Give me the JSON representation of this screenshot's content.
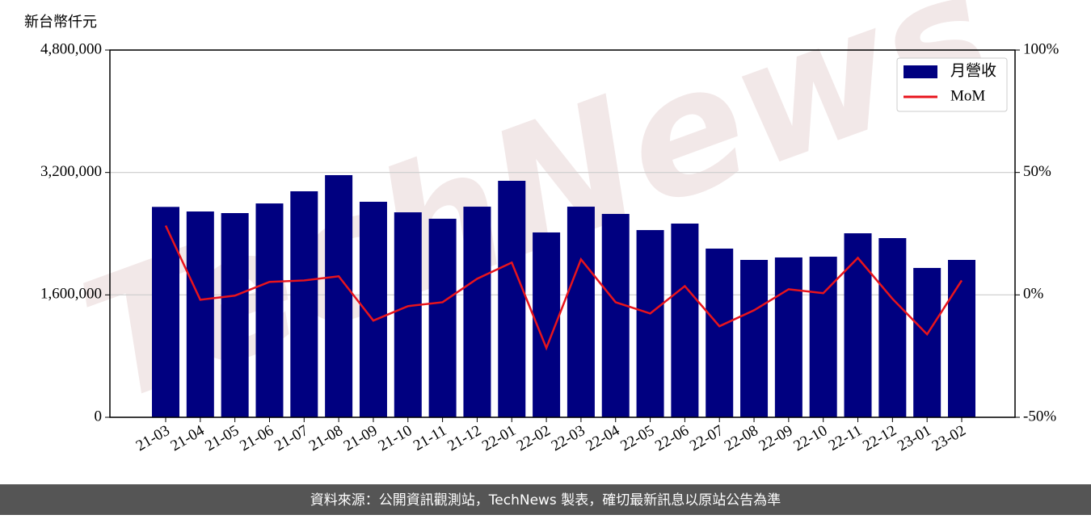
{
  "chart_data": {
    "type": "bar_line",
    "y_label": "新台幣仟元",
    "watermark": "TechNews",
    "categories": [
      "21-03",
      "21-04",
      "21-05",
      "21-06",
      "21-07",
      "21-08",
      "21-09",
      "21-10",
      "21-11",
      "21-12",
      "22-01",
      "22-02",
      "22-03",
      "22-04",
      "22-05",
      "22-06",
      "22-07",
      "22-08",
      "22-09",
      "22-10",
      "22-11",
      "22-12",
      "23-01",
      "23-02"
    ],
    "series": [
      {
        "name": "月營收",
        "type": "bar",
        "color": "#000080",
        "values": [
          2750000,
          2690000,
          2669000,
          2795000,
          2954000,
          3165000,
          2817000,
          2679000,
          2595000,
          2753000,
          3091000,
          2416000,
          2753000,
          2658000,
          2447000,
          2532000,
          2205000,
          2057000,
          2089000,
          2099000,
          2405000,
          2342000,
          1952000,
          2057000
        ]
      },
      {
        "name": "MoM",
        "type": "line",
        "axis": "y2",
        "color": "#e8141c",
        "values": [
          28.3,
          -2,
          -0.3,
          5.3,
          5.9,
          7.6,
          -10.5,
          -4.6,
          -3,
          6.6,
          13.2,
          -21.7,
          14.5,
          -3,
          -7.6,
          3.6,
          -12.8,
          -6.3,
          2.3,
          0.7,
          15.1,
          -1.6,
          -16.1,
          5.9
        ]
      }
    ],
    "ylim": [
      0,
      4800000
    ],
    "yticks": [
      {
        "value": 0,
        "label": "0"
      },
      {
        "value": 1600000,
        "label": "1,600,000"
      },
      {
        "value": 3200000,
        "label": "3,200,000"
      },
      {
        "value": 4800000,
        "label": "4,800,000"
      }
    ],
    "y2lim": [
      -50,
      100
    ],
    "y2ticks": [
      {
        "value": -50,
        "label": "-50%"
      },
      {
        "value": 0,
        "label": "0%"
      },
      {
        "value": 50,
        "label": "50%"
      },
      {
        "value": 100,
        "label": "100%"
      }
    ],
    "grid": true,
    "legend": "upper right",
    "footer": "資料來源：公開資訊觀測站，TechNews 製表，確切最新訊息以原站公告為準"
  }
}
